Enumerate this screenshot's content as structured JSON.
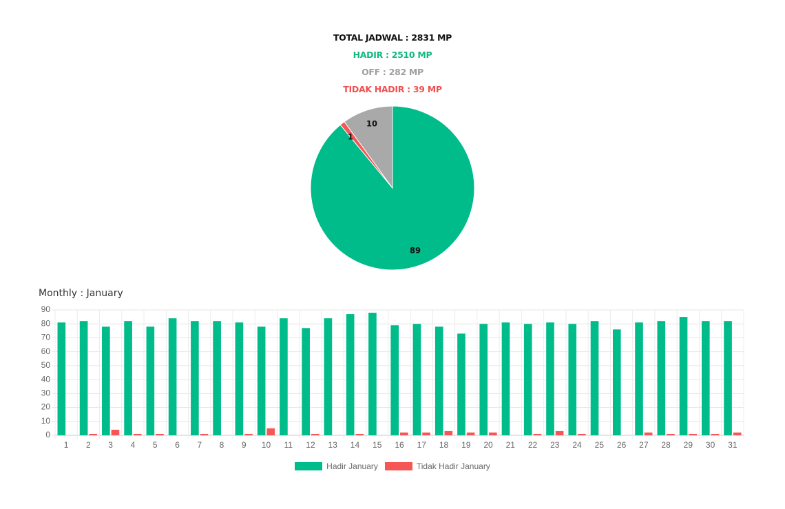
{
  "summary": {
    "total": "TOTAL JADWAL : 2831 MP",
    "hadir": "HADIR : 2510 MP",
    "off": "OFF : 282 MP",
    "tidak_hadir": "TIDAK HADIR : 39 MP"
  },
  "colors": {
    "hadir": "#00bb8a",
    "tidak_hadir": "#f65656",
    "off": "#a9a9a9"
  },
  "chart_data": [
    {
      "type": "pie",
      "slices": [
        {
          "key": "hadir",
          "value": 89
        },
        {
          "key": "tidak_hadir",
          "value": 1
        },
        {
          "key": "off",
          "value": 10
        }
      ],
      "data_labels": [
        "89",
        "1",
        "10"
      ]
    },
    {
      "type": "bar",
      "title": "Monthly : January",
      "categories": [
        "1",
        "2",
        "3",
        "4",
        "5",
        "6",
        "7",
        "8",
        "9",
        "10",
        "11",
        "12",
        "13",
        "14",
        "15",
        "16",
        "17",
        "18",
        "19",
        "20",
        "21",
        "22",
        "23",
        "24",
        "25",
        "26",
        "27",
        "28",
        "29",
        "30",
        "31"
      ],
      "series": [
        {
          "name": "Hadir January",
          "values": [
            81,
            82,
            78,
            82,
            78,
            84,
            82,
            82,
            81,
            78,
            84,
            77,
            84,
            87,
            88,
            79,
            80,
            78,
            73,
            80,
            81,
            80,
            81,
            80,
            82,
            76,
            81,
            82,
            85,
            82,
            82
          ]
        },
        {
          "name": "Tidak Hadir January",
          "values": [
            0,
            1,
            4,
            1,
            1,
            0,
            1,
            0,
            1,
            5,
            0,
            1,
            0,
            1,
            0,
            2,
            2,
            3,
            2,
            2,
            0,
            1,
            3,
            1,
            0,
            0,
            2,
            1,
            1,
            1,
            2
          ]
        }
      ],
      "ylim": [
        0,
        90
      ],
      "yticks": [
        0,
        10,
        20,
        30,
        40,
        50,
        60,
        70,
        80,
        90
      ],
      "grid": true,
      "legend": "bottom"
    }
  ]
}
